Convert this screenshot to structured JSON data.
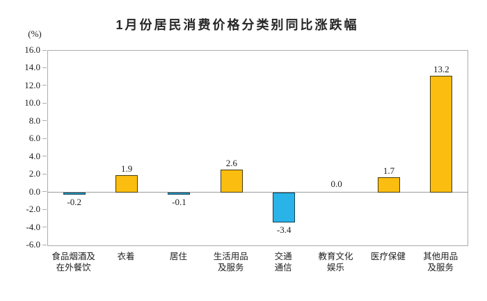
{
  "chart": {
    "title": "1月份居民消费价格分类别同比涨跌幅",
    "unit_label": "(%)"
  },
  "chart_data": {
    "type": "bar",
    "title": "1月份居民消费价格分类别同比涨跌幅",
    "unit": "%",
    "categories": [
      "食品烟酒及\n在外餐饮",
      "衣着",
      "居住",
      "生活用品\n及服务",
      "交通\n通信",
      "教育文化\n娱乐",
      "医疗保健",
      "其他用品\n及服务"
    ],
    "values": [
      -0.2,
      1.9,
      -0.1,
      2.6,
      -3.4,
      0.0,
      1.7,
      13.2
    ],
    "data_labels": [
      "-0.2",
      "1.9",
      "-0.1",
      "2.6",
      "-3.4",
      "0.0",
      "1.7",
      "13.2"
    ],
    "ylim": [
      -6.0,
      16.0
    ],
    "ytick_step": 2.0,
    "ytick_labels": [
      "16.0",
      "14.0",
      "12.0",
      "10.0",
      "8.0",
      "6.0",
      "4.0",
      "2.0",
      "0.0",
      "-2.0",
      "-4.0",
      "-6.0"
    ],
    "grid": false,
    "legend_position": "none",
    "colors": {
      "positive_fill": "#FBBD0F",
      "positive_border": "#443A12",
      "negative_fill": "#29B3E8",
      "negative_border": "#123F54",
      "axis": "#ABABAB",
      "zero_line": "#9A9A9A",
      "text": "#1C1C1C"
    }
  }
}
